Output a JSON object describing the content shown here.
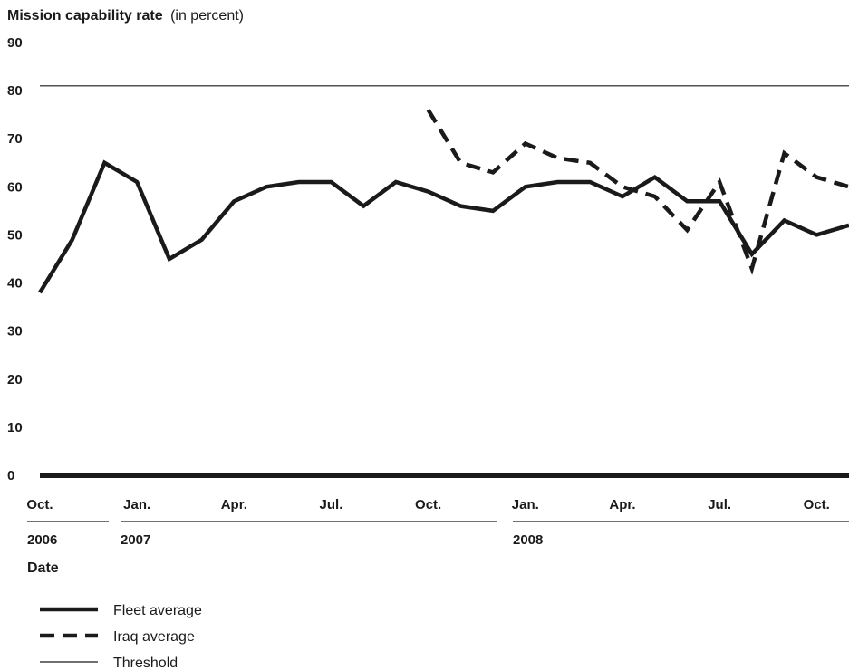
{
  "chart_data": {
    "type": "line",
    "title": "Mission capability rate",
    "title_suffix": "(in percent)",
    "xlabel": "Date",
    "ylim": [
      0,
      90
    ],
    "yticks": [
      "0",
      "10",
      "20",
      "30",
      "40",
      "50",
      "60",
      "70",
      "80",
      "90"
    ],
    "grid": false,
    "x_month_labels": [
      "Oct.",
      "Jan.",
      "Apr.",
      "Jul.",
      "Oct.",
      "Jan.",
      "Apr.",
      "Jul.",
      "Oct."
    ],
    "x_year_labels": [
      "2006",
      "2007",
      "2008"
    ],
    "x": [
      "2006-10",
      "2006-11",
      "2006-12",
      "2007-01",
      "2007-02",
      "2007-03",
      "2007-04",
      "2007-05",
      "2007-06",
      "2007-07",
      "2007-08",
      "2007-09",
      "2007-10",
      "2007-11",
      "2007-12",
      "2008-01",
      "2008-02",
      "2008-03",
      "2008-04",
      "2008-05",
      "2008-06",
      "2008-07",
      "2008-08",
      "2008-09",
      "2008-10",
      "2008-11"
    ],
    "series": [
      {
        "name": "Fleet average",
        "style": "solid",
        "color": "#1a1a1a",
        "values": [
          38,
          49,
          65,
          61,
          45,
          49,
          57,
          60,
          61,
          61,
          56,
          61,
          59,
          56,
          55,
          60,
          61,
          61,
          58,
          62,
          57,
          57,
          46,
          53,
          50,
          52
        ]
      },
      {
        "name": "Iraq average",
        "style": "dashed",
        "color": "#1a1a1a",
        "values": [
          null,
          null,
          null,
          null,
          null,
          null,
          null,
          null,
          null,
          null,
          null,
          null,
          76,
          65,
          63,
          69,
          66,
          65,
          60,
          58,
          51,
          61,
          43,
          67,
          62,
          60
        ]
      },
      {
        "name": "Threshold",
        "style": "thin",
        "color": "#1a1a1a",
        "values": [
          81,
          81,
          81,
          81,
          81,
          81,
          81,
          81,
          81,
          81,
          81,
          81,
          81,
          81,
          81,
          81,
          81,
          81,
          81,
          81,
          81,
          81,
          81,
          81,
          81,
          81
        ]
      }
    ],
    "legend": [
      {
        "label": "Fleet average",
        "style": "solid"
      },
      {
        "label": "Iraq average",
        "style": "dashed"
      },
      {
        "label": "Threshold",
        "style": "thin"
      }
    ],
    "legend_position": "bottom-left"
  }
}
